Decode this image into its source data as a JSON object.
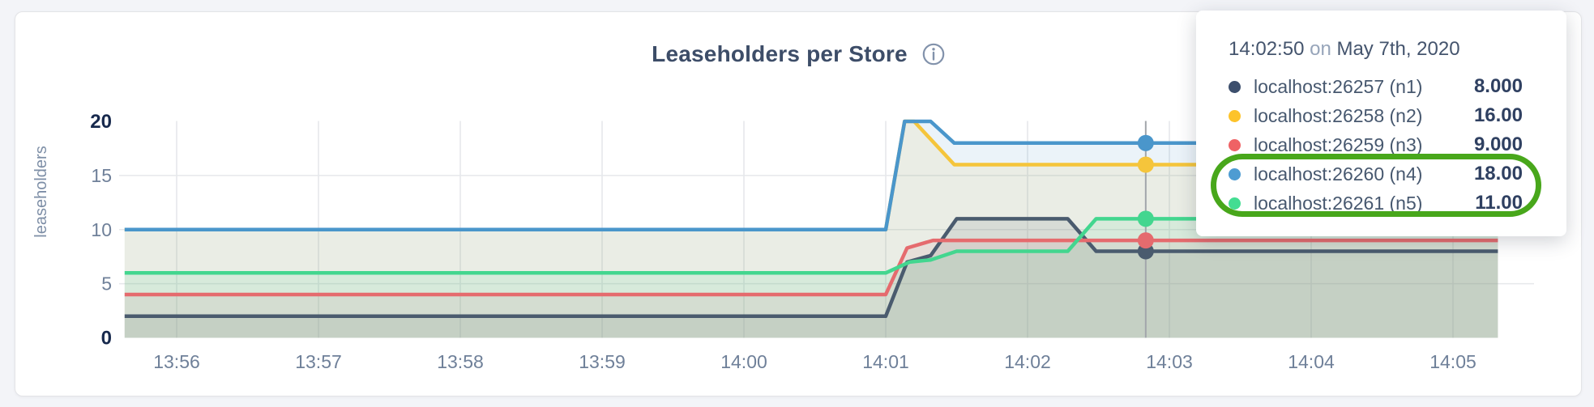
{
  "header": {
    "title": "Leaseholders per Store",
    "info_icon": "info-icon"
  },
  "tooltip": {
    "time": "14:02:50",
    "on_word": "on",
    "date": "May 7th, 2020",
    "highlight_color": "#48a71b",
    "rows": [
      {
        "name": "localhost:26257 (n1)",
        "value": "8.000",
        "color": "#3d4f6d",
        "highlighted": false
      },
      {
        "name": "localhost:26258 (n2)",
        "value": "16.00",
        "color": "#fdc32a",
        "highlighted": false
      },
      {
        "name": "localhost:26259 (n3)",
        "value": "9.000",
        "color": "#ef6265",
        "highlighted": false
      },
      {
        "name": "localhost:26260 (n4)",
        "value": "18.00",
        "color": "#4e9cd2",
        "highlighted": true
      },
      {
        "name": "localhost:26261 (n5)",
        "value": "11.00",
        "color": "#43dd92",
        "highlighted": true
      }
    ]
  },
  "chart_data": {
    "type": "area",
    "title": "Leaseholders per Store",
    "xlabel": "",
    "ylabel": "leaseholders",
    "ylim": [
      0,
      20
    ],
    "yticks": [
      0,
      5,
      10,
      15,
      20
    ],
    "ytick_bold": [
      0,
      20
    ],
    "xticks": [
      "13:56",
      "13:57",
      "13:58",
      "13:59",
      "14:00",
      "14:01",
      "14:02",
      "14:03",
      "14:04",
      "14:05"
    ],
    "x_start": "13:55:38",
    "x_end": "14:05:19",
    "grid": true,
    "legend_position": "tooltip",
    "crosshair_color": "#a2a6ab",
    "gridline_color": "#e6e8eb",
    "series": [
      {
        "name": "localhost:26257 (n1)",
        "line_color": "#4a5b6e",
        "fill_rgba": "rgba(74,91,110,0.13)",
        "hover_value": 8,
        "points": [
          [
            "13:55:38",
            2
          ],
          [
            "14:01:00",
            2
          ],
          [
            "14:01:09",
            7
          ],
          [
            "14:01:19",
            7.6
          ],
          [
            "14:01:30",
            11
          ],
          [
            "14:02:17",
            11
          ],
          [
            "14:02:29",
            8
          ],
          [
            "14:05:19",
            8
          ]
        ]
      },
      {
        "name": "localhost:26258 (n2)",
        "line_color": "#f5c53b",
        "fill_rgba": "rgba(245,197,59,0.11)",
        "hover_value": 16,
        "points": [
          [
            "13:55:38",
            10
          ],
          [
            "14:01:00",
            10
          ],
          [
            "14:01:08",
            20
          ],
          [
            "14:01:12",
            20
          ],
          [
            "14:01:29",
            16
          ],
          [
            "14:05:19",
            16
          ]
        ]
      },
      {
        "name": "localhost:26259 (n3)",
        "line_color": "#e56b6e",
        "fill_rgba": "rgba(229,107,110,0.11)",
        "hover_value": 9,
        "points": [
          [
            "13:55:38",
            4
          ],
          [
            "14:01:00",
            4
          ],
          [
            "14:01:09",
            8.3
          ],
          [
            "14:01:20",
            9
          ],
          [
            "14:05:19",
            9
          ]
        ]
      },
      {
        "name": "localhost:26260 (n4)",
        "line_color": "#4a96cb",
        "fill_rgba": "rgba(74,150,203,0.11)",
        "hover_value": 18,
        "points": [
          [
            "13:55:38",
            10
          ],
          [
            "14:01:00",
            10
          ],
          [
            "14:01:08",
            20
          ],
          [
            "14:01:19",
            20
          ],
          [
            "14:01:29",
            18
          ],
          [
            "14:05:19",
            18
          ]
        ]
      },
      {
        "name": "localhost:26261 (n5)",
        "line_color": "#43d68f",
        "fill_rgba": "rgba(67,214,143,0.11)",
        "hover_value": 11,
        "points": [
          [
            "13:55:38",
            6
          ],
          [
            "14:01:00",
            6
          ],
          [
            "14:01:10",
            7
          ],
          [
            "14:01:19",
            7.2
          ],
          [
            "14:01:30",
            8
          ],
          [
            "14:02:17",
            8
          ],
          [
            "14:02:29",
            11
          ],
          [
            "14:05:19",
            11
          ]
        ]
      }
    ],
    "hover": {
      "time": "14:02:50",
      "date": "May 7th, 2020"
    }
  }
}
